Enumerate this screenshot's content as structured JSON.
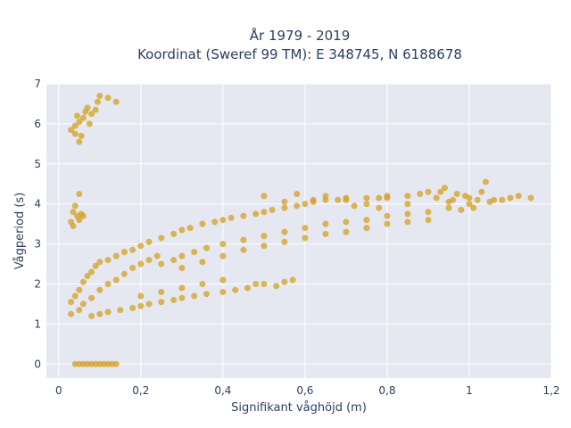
{
  "chart_data": {
    "type": "scatter",
    "title_line1": "År 1979 - 2019",
    "title_line2": "Koordinat (Sweref 99 TM): E 348745, N 6188678",
    "xlabel": "Signifikant våghöjd (m)",
    "ylabel": "Vågperiod (s)",
    "xlim": [
      -0.03,
      1.2
    ],
    "ylim": [
      -0.35,
      7
    ],
    "x_ticks": [
      {
        "value": 0,
        "label": "0"
      },
      {
        "value": 0.2,
        "label": "0,2"
      },
      {
        "value": 0.4,
        "label": "0,4"
      },
      {
        "value": 0.6,
        "label": "0,6"
      },
      {
        "value": 0.8,
        "label": "0,8"
      },
      {
        "value": 1.0,
        "label": "1"
      },
      {
        "value": 1.2,
        "label": "1,2"
      }
    ],
    "y_ticks": [
      {
        "value": 0,
        "label": "0"
      },
      {
        "value": 1,
        "label": "1"
      },
      {
        "value": 2,
        "label": "2"
      },
      {
        "value": 3,
        "label": "3"
      },
      {
        "value": 4,
        "label": "4"
      },
      {
        "value": 5,
        "label": "5"
      },
      {
        "value": 6,
        "label": "6"
      },
      {
        "value": 7,
        "label": "7"
      }
    ],
    "grid": true,
    "marker_color": "#D4A020",
    "plot_bg": "#E5E8F0",
    "series": [
      {
        "points": [
          [
            0.04,
            0
          ],
          [
            0.05,
            0
          ],
          [
            0.06,
            0
          ],
          [
            0.07,
            0
          ],
          [
            0.08,
            0
          ],
          [
            0.09,
            0
          ],
          [
            0.1,
            0
          ],
          [
            0.11,
            0
          ],
          [
            0.12,
            0
          ],
          [
            0.13,
            0
          ],
          [
            0.14,
            0
          ],
          [
            0.03,
            5.85
          ],
          [
            0.04,
            5.95
          ],
          [
            0.05,
            6.05
          ],
          [
            0.055,
            5.7
          ],
          [
            0.05,
            5.55
          ],
          [
            0.06,
            6.15
          ],
          [
            0.065,
            6.3
          ],
          [
            0.07,
            6.4
          ],
          [
            0.075,
            6.0
          ],
          [
            0.08,
            6.25
          ],
          [
            0.09,
            6.35
          ],
          [
            0.095,
            6.55
          ],
          [
            0.1,
            6.7
          ],
          [
            0.12,
            6.65
          ],
          [
            0.14,
            6.55
          ],
          [
            0.04,
            5.75
          ],
          [
            0.045,
            6.2
          ],
          [
            0.03,
            3.55
          ],
          [
            0.035,
            3.8
          ],
          [
            0.04,
            3.95
          ],
          [
            0.045,
            3.7
          ],
          [
            0.05,
            4.25
          ],
          [
            0.05,
            3.6
          ],
          [
            0.055,
            3.75
          ],
          [
            0.06,
            3.7
          ],
          [
            0.035,
            3.45
          ],
          [
            0.03,
            1.25
          ],
          [
            0.03,
            1.55
          ],
          [
            0.04,
            1.7
          ],
          [
            0.05,
            1.85
          ],
          [
            0.06,
            2.05
          ],
          [
            0.07,
            2.2
          ],
          [
            0.08,
            2.3
          ],
          [
            0.09,
            2.45
          ],
          [
            0.1,
            2.55
          ],
          [
            0.12,
            2.6
          ],
          [
            0.14,
            2.7
          ],
          [
            0.16,
            2.8
          ],
          [
            0.05,
            1.35
          ],
          [
            0.06,
            1.5
          ],
          [
            0.08,
            1.65
          ],
          [
            0.1,
            1.85
          ],
          [
            0.12,
            2.0
          ],
          [
            0.14,
            2.1
          ],
          [
            0.16,
            2.25
          ],
          [
            0.18,
            2.4
          ],
          [
            0.2,
            2.5
          ],
          [
            0.22,
            2.6
          ],
          [
            0.24,
            2.7
          ],
          [
            0.18,
            2.85
          ],
          [
            0.2,
            2.95
          ],
          [
            0.22,
            3.05
          ],
          [
            0.25,
            3.15
          ],
          [
            0.28,
            3.25
          ],
          [
            0.3,
            3.35
          ],
          [
            0.32,
            3.4
          ],
          [
            0.35,
            3.5
          ],
          [
            0.38,
            3.55
          ],
          [
            0.4,
            3.6
          ],
          [
            0.42,
            3.65
          ],
          [
            0.45,
            3.7
          ],
          [
            0.48,
            3.75
          ],
          [
            0.5,
            3.8
          ],
          [
            0.52,
            3.85
          ],
          [
            0.55,
            3.9
          ],
          [
            0.58,
            3.95
          ],
          [
            0.6,
            4.0
          ],
          [
            0.62,
            4.05
          ],
          [
            0.65,
            4.1
          ],
          [
            0.68,
            4.1
          ],
          [
            0.7,
            4.1
          ],
          [
            0.75,
            4.15
          ],
          [
            0.78,
            4.15
          ],
          [
            0.8,
            4.15
          ],
          [
            0.85,
            4.2
          ],
          [
            0.88,
            4.25
          ],
          [
            0.9,
            4.3
          ],
          [
            0.25,
            2.5
          ],
          [
            0.28,
            2.6
          ],
          [
            0.3,
            2.7
          ],
          [
            0.33,
            2.8
          ],
          [
            0.36,
            2.9
          ],
          [
            0.4,
            3.0
          ],
          [
            0.45,
            3.1
          ],
          [
            0.5,
            3.2
          ],
          [
            0.55,
            3.3
          ],
          [
            0.6,
            3.4
          ],
          [
            0.65,
            3.5
          ],
          [
            0.7,
            3.55
          ],
          [
            0.75,
            3.6
          ],
          [
            0.8,
            3.7
          ],
          [
            0.85,
            3.75
          ],
          [
            0.9,
            3.8
          ],
          [
            0.95,
            3.9
          ],
          [
            1.0,
            4.0
          ],
          [
            0.3,
            2.4
          ],
          [
            0.35,
            2.55
          ],
          [
            0.4,
            2.7
          ],
          [
            0.45,
            2.85
          ],
          [
            0.5,
            2.95
          ],
          [
            0.55,
            3.05
          ],
          [
            0.6,
            3.15
          ],
          [
            0.65,
            3.25
          ],
          [
            0.7,
            3.3
          ],
          [
            0.75,
            3.4
          ],
          [
            0.8,
            3.5
          ],
          [
            0.85,
            3.55
          ],
          [
            0.9,
            3.6
          ],
          [
            0.08,
            1.2
          ],
          [
            0.1,
            1.25
          ],
          [
            0.12,
            1.3
          ],
          [
            0.15,
            1.35
          ],
          [
            0.18,
            1.4
          ],
          [
            0.2,
            1.45
          ],
          [
            0.22,
            1.5
          ],
          [
            0.25,
            1.55
          ],
          [
            0.28,
            1.6
          ],
          [
            0.3,
            1.65
          ],
          [
            0.33,
            1.7
          ],
          [
            0.36,
            1.75
          ],
          [
            0.4,
            1.8
          ],
          [
            0.43,
            1.85
          ],
          [
            0.46,
            1.9
          ],
          [
            0.48,
            2.0
          ],
          [
            0.5,
            2.0
          ],
          [
            0.53,
            1.95
          ],
          [
            0.55,
            2.05
          ],
          [
            0.57,
            2.1
          ],
          [
            0.35,
            2.0
          ],
          [
            0.4,
            2.1
          ],
          [
            0.25,
            1.8
          ],
          [
            0.3,
            1.9
          ],
          [
            0.2,
            1.7
          ],
          [
            0.5,
            4.2
          ],
          [
            0.55,
            4.05
          ],
          [
            0.58,
            4.25
          ],
          [
            0.62,
            4.1
          ],
          [
            0.65,
            4.2
          ],
          [
            0.7,
            4.15
          ],
          [
            0.72,
            3.95
          ],
          [
            0.75,
            4.0
          ],
          [
            0.78,
            3.9
          ],
          [
            0.8,
            4.2
          ],
          [
            0.85,
            4.0
          ],
          [
            0.92,
            4.15
          ],
          [
            0.93,
            4.3
          ],
          [
            0.94,
            4.4
          ],
          [
            0.95,
            4.05
          ],
          [
            0.96,
            4.1
          ],
          [
            0.97,
            4.25
          ],
          [
            0.98,
            3.85
          ],
          [
            0.99,
            4.2
          ],
          [
            1.0,
            4.15
          ],
          [
            1.01,
            3.9
          ],
          [
            1.02,
            4.1
          ],
          [
            1.03,
            4.3
          ],
          [
            1.04,
            4.55
          ],
          [
            1.05,
            4.05
          ],
          [
            1.06,
            4.1
          ],
          [
            1.08,
            4.1
          ],
          [
            1.1,
            4.15
          ],
          [
            1.12,
            4.2
          ],
          [
            1.15,
            4.15
          ]
        ]
      }
    ]
  }
}
